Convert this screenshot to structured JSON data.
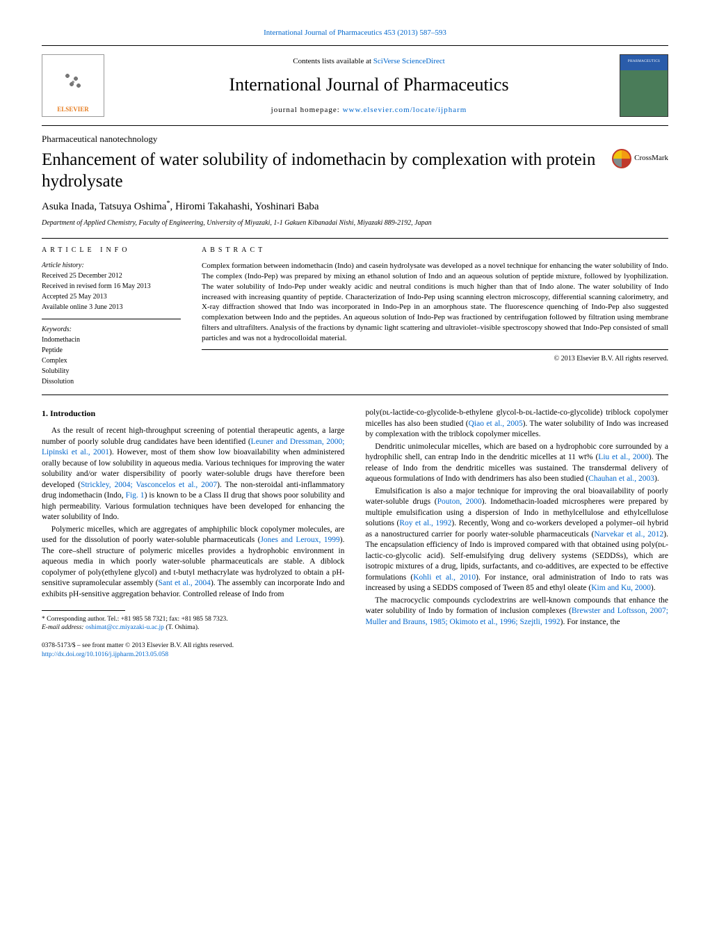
{
  "header": {
    "citation_prefix": "International Journal of Pharmaceutics 453 (2013) 587–593",
    "contents_line_prefix": "Contents lists available at ",
    "contents_line_link": "SciVerse ScienceDirect",
    "journal_title": "International Journal of Pharmaceutics",
    "homepage_prefix": "journal homepage: ",
    "homepage_link": "www.elsevier.com/locate/ijpharm",
    "elsevier_label": "ELSEVIER",
    "crossmark_label": "CrossMark"
  },
  "section_label": "Pharmaceutical nanotechnology",
  "title": "Enhancement of water solubility of indomethacin by complexation with protein hydrolysate",
  "authors_html": "Asuka Inada, Tatsuya Oshima",
  "author_corr_mark": "*",
  "authors_rest": ", Hiromi Takahashi, Yoshinari Baba",
  "affiliation": "Department of Applied Chemistry, Faculty of Engineering, University of Miyazaki, 1-1 Gakuen Kibanadai Nishi, Miyazaki 889-2192, Japan",
  "article_info": {
    "heading": "article info",
    "history_label": "Article history:",
    "received": "Received 25 December 2012",
    "revised": "Received in revised form 16 May 2013",
    "accepted": "Accepted 25 May 2013",
    "online": "Available online 3 June 2013",
    "keywords_label": "Keywords:",
    "keywords": [
      "Indomethacin",
      "Peptide",
      "Complex",
      "Solubility",
      "Dissolution"
    ]
  },
  "abstract": {
    "heading": "abstract",
    "text": "Complex formation between indomethacin (Indo) and casein hydrolysate was developed as a novel technique for enhancing the water solubility of Indo. The complex (Indo-Pep) was prepared by mixing an ethanol solution of Indo and an aqueous solution of peptide mixture, followed by lyophilization. The water solubility of Indo-Pep under weakly acidic and neutral conditions is much higher than that of Indo alone. The water solubility of Indo increased with increasing quantity of peptide. Characterization of Indo-Pep using scanning electron microscopy, differential scanning calorimetry, and X-ray diffraction showed that Indo was incorporated in Indo-Pep in an amorphous state. The fluorescence quenching of Indo-Pep also suggested complexation between Indo and the peptides. An aqueous solution of Indo-Pep was fractioned by centrifugation followed by filtration using membrane filters and ultrafilters. Analysis of the fractions by dynamic light scattering and ultraviolet–visible spectroscopy showed that Indo-Pep consisted of small particles and was not a hydrocolloidal material.",
    "copyright": "© 2013 Elsevier B.V. All rights reserved."
  },
  "body": {
    "intro_heading": "1. Introduction",
    "left": {
      "p1a": "As the result of recent high-throughput screening of potential therapeutic agents, a large number of poorly soluble drug candidates have been identified (",
      "p1_link1": "Leuner and Dressman, 2000; Lipinski et al., 2001",
      "p1b": "). However, most of them show low bioavailability when administered orally because of low solubility in aqueous media. Various techniques for improving the water solubility and/or water dispersibility of poorly water-soluble drugs have therefore been developed (",
      "p1_link2": "Strickley, 2004; Vasconcelos et al., 2007",
      "p1c": "). The non-steroidal anti-inflammatory drug indomethacin (Indo, ",
      "p1_link3": "Fig. 1",
      "p1d": ") is known to be a Class II drug that shows poor solubility and high permeability. Various formulation techniques have been developed for enhancing the water solubility of Indo.",
      "p2a": "Polymeric micelles, which are aggregates of amphiphilic block copolymer molecules, are used for the dissolution of poorly water-soluble pharmaceuticals (",
      "p2_link1": "Jones and Leroux, 1999",
      "p2b": "). The core–shell structure of polymeric micelles provides a hydrophobic environment in aqueous media in which poorly water-soluble pharmaceuticals are stable. A diblock copolymer of poly(ethylene glycol) and t-butyl methacrylate was hydrolyzed to obtain a pH-sensitive supramolecular assembly (",
      "p2_link2": "Sant et al., 2004",
      "p2c": "). The assembly can incorporate Indo and exhibits pH-sensitive aggregation behavior. Controlled release of Indo from"
    },
    "right": {
      "p1a": "poly(ᴅʟ-lactide-co-glycolide-b-ethylene glycol-b-ᴅʟ-lactide-co-glycolide) triblock copolymer micelles has also been studied (",
      "p1_link1": "Qiao et al., 2005",
      "p1b": "). The water solubility of Indo was increased by complexation with the triblock copolymer micelles.",
      "p2a": "Dendritic unimolecular micelles, which are based on a hydrophobic core surrounded by a hydrophilic shell, can entrap Indo in the dendritic micelles at 11 wt% (",
      "p2_link1": "Liu et al., 2000",
      "p2b": "). The release of Indo from the dendritic micelles was sustained. The transdermal delivery of aqueous formulations of Indo with dendrimers has also been studied (",
      "p2_link2": "Chauhan et al., 2003",
      "p2c": ").",
      "p3a": "Emulsification is also a major technique for improving the oral bioavailability of poorly water-soluble drugs (",
      "p3_link1": "Pouton, 2000",
      "p3b": "). Indomethacin-loaded microspheres were prepared by multiple emulsification using a dispersion of Indo in methylcellulose and ethylcellulose solutions (",
      "p3_link2": "Roy et al., 1992",
      "p3c": "). Recently, Wong and co-workers developed a polymer–oil hybrid as a nanostructured carrier for poorly water-soluble pharmaceuticals (",
      "p3_link3": "Narvekar et al., 2012",
      "p3d": "). The encapsulation efficiency of Indo is improved compared with that obtained using poly(ᴅʟ-lactic-co-glycolic acid). Self-emulsifying drug delivery systems (SEDDSs), which are isotropic mixtures of a drug, lipids, surfactants, and co-additives, are expected to be effective formulations (",
      "p3_link4": "Kohli et al., 2010",
      "p3e": "). For instance, oral administration of Indo to rats was increased by using a SEDDS composed of Tween 85 and ethyl oleate (",
      "p3_link5": "Kim and Ku, 2000",
      "p3f": ").",
      "p4a": "The macrocyclic compounds cyclodextrins are well-known compounds that enhance the water solubility of Indo by formation of inclusion complexes (",
      "p4_link1": "Brewster and Loftsson, 2007; Muller and Brauns, 1985; Okimoto et al., 1996; Szejtli, 1992",
      "p4b": "). For instance, the"
    }
  },
  "footnote": {
    "corr_prefix": "* Corresponding author. Tel.: +81 985 58 7321; fax: +81 985 58 7323.",
    "email_label": "E-mail address: ",
    "email": "oshimat@cc.miyazaki-u.ac.jp",
    "email_suffix": " (T. Oshima)."
  },
  "bottom": {
    "issn_line": "0378-5173/$ – see front matter © 2013 Elsevier B.V. All rights reserved.",
    "doi": "http://dx.doi.org/10.1016/j.ijpharm.2013.05.058"
  },
  "colors": {
    "link": "#0066cc",
    "elsevier_orange": "#e67e22"
  }
}
